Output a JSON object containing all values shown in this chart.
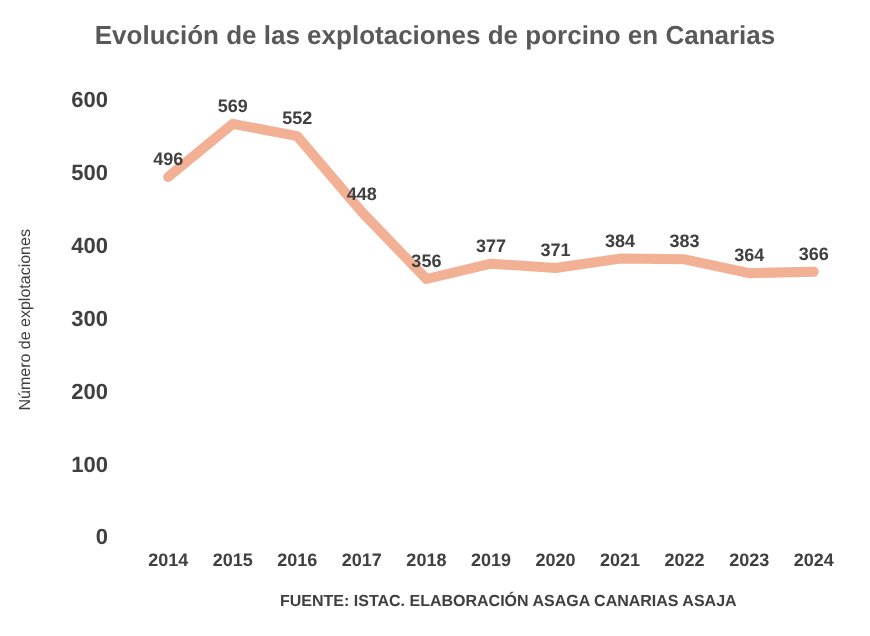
{
  "chart_data": {
    "type": "line",
    "title": "Evolución de las explotaciones de porcino en Canarias",
    "ylabel": "Número de explotaciones",
    "categories": [
      "2014",
      "2015",
      "2016",
      "2017",
      "2018",
      "2019",
      "2020",
      "2021",
      "2022",
      "2023",
      "2024"
    ],
    "series": [
      {
        "color": "#f2b095",
        "values": [
          496,
          569,
          552,
          448,
          356,
          377,
          371,
          384,
          383,
          364,
          366
        ]
      }
    ],
    "ylim": [
      0,
      600
    ],
    "yticks": [
      0,
      100,
      200,
      300,
      400,
      500,
      600
    ],
    "grid": false,
    "legend": false,
    "marker": "none",
    "line_style": "solid",
    "data_labels": true,
    "annotations": [
      "FUENTE: ISTAC. ELABORACIÓN ASAGA CANARIAS ASAJA"
    ]
  }
}
